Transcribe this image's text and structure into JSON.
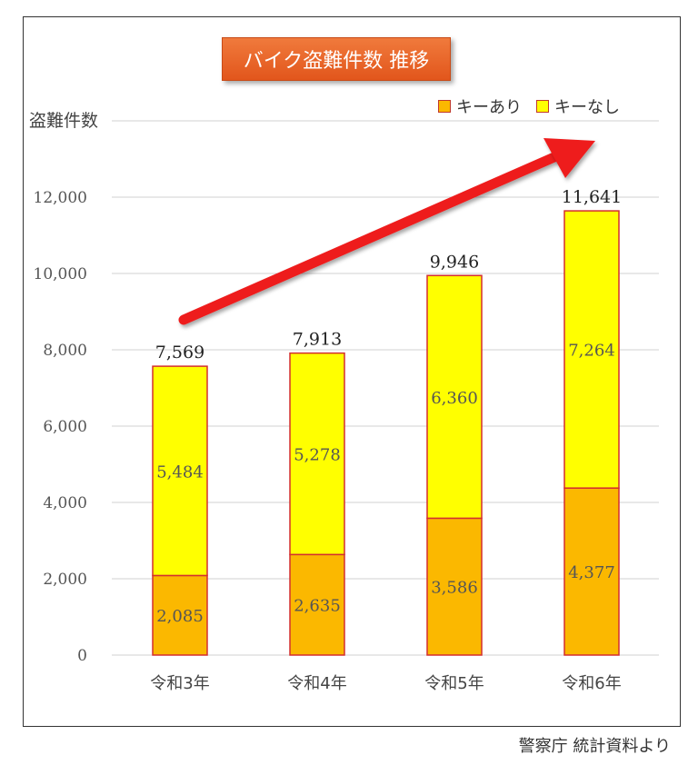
{
  "title": "バイク盗難件数 推移",
  "source": "警察庁 統計資料より",
  "colors": {
    "key_ari": "#fbb800",
    "key_nashi": "#ffff00",
    "bar_border": "#d32f2f",
    "arrow": "#ee1c1c",
    "title_bg": "#e8622a"
  },
  "chart_data": {
    "type": "bar",
    "stacked": true,
    "title": "バイク盗難件数 推移",
    "ylabel": "盗難件数",
    "xlabel": "",
    "categories": [
      "令和3年",
      "令和4年",
      "令和5年",
      "令和6年"
    ],
    "series": [
      {
        "name": "キーあり",
        "values": [
          2085,
          2635,
          3586,
          4377
        ]
      },
      {
        "name": "キーなし",
        "values": [
          5484,
          5278,
          6360,
          7264
        ]
      }
    ],
    "totals": [
      7569,
      7913,
      9946,
      11641
    ],
    "total_labels": [
      "7,569",
      "7,913",
      "9,946",
      "11,641"
    ],
    "segment_labels": [
      [
        "2,085",
        "2,635",
        "3,586",
        "4,377"
      ],
      [
        "5,484",
        "5,278",
        "6,360",
        "7,264"
      ]
    ],
    "yticks": [
      0,
      2000,
      4000,
      6000,
      8000,
      10000,
      12000
    ],
    "ytick_labels": [
      "0",
      "2,000",
      "4,000",
      "6,000",
      "8,000",
      "10,000",
      "12,000"
    ],
    "ylim": [
      0,
      14000
    ],
    "grid": true,
    "legend_position": "top-right",
    "annotation": "trend arrow rising upward"
  }
}
